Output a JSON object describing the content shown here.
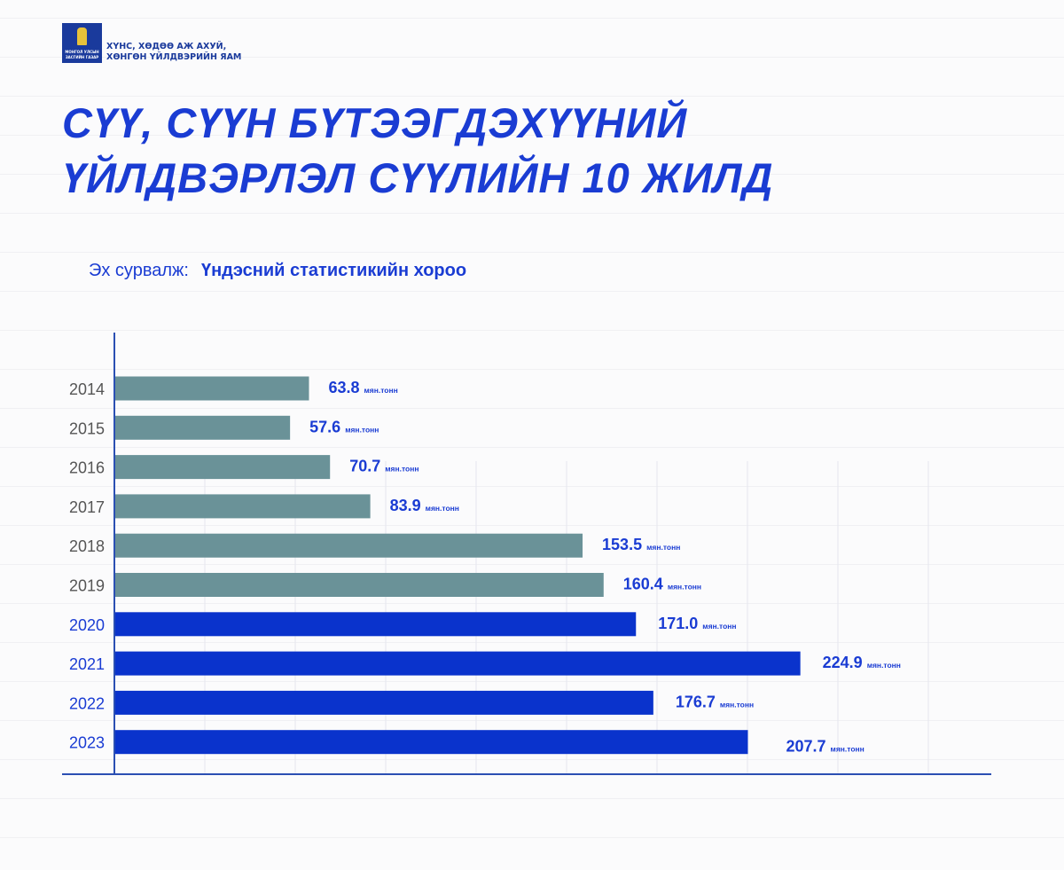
{
  "header": {
    "logo_text": [
      "МОНГОЛ УЛСЫН",
      "ЗАСГИЙН ГАЗАР"
    ],
    "ministry_line1": "ХҮНС, ХӨДӨӨ АЖ АХУЙ,",
    "ministry_line2": "ХӨНГӨН ҮЙЛДВЭРИЙН ЯАМ"
  },
  "source": {
    "label": "Эх сурвалж:",
    "value": "Үндэсний статистикийн хороо"
  },
  "colors": {
    "past": "#6a9298",
    "recent": "#0a33cc",
    "value_text": "#1a3cd3"
  },
  "chart_data": {
    "type": "bar",
    "orientation": "horizontal",
    "title": "СҮҮ, СҮҮН БҮТЭЭГДЭХҮҮНИЙ ҮЙЛДВЭРЛЭЛ СҮҮЛИЙН 10 ЖИЛД",
    "title_lines": [
      "СҮҮ, СҮҮН БҮТЭЭГДЭХҮҮНИЙ",
      "ҮЙЛДВЭРЛЭЛ СҮҮЛИЙН 10 ЖИЛД"
    ],
    "categories": [
      "2014",
      "2015",
      "2016",
      "2017",
      "2018",
      "2019",
      "2020",
      "2021",
      "2022",
      "2023"
    ],
    "values": [
      63.8,
      57.6,
      70.7,
      83.9,
      153.5,
      160.4,
      171.0,
      224.9,
      176.7,
      207.7
    ],
    "value_labels": [
      "63.8",
      "57.6",
      "70.7",
      "83.9",
      "153.5",
      "160.4",
      "171.0",
      "224.9",
      "176.7",
      "207.7"
    ],
    "unit": "мян.тонн",
    "highlight_from": "2020",
    "xlim": [
      0,
      288
    ],
    "grid": true
  }
}
